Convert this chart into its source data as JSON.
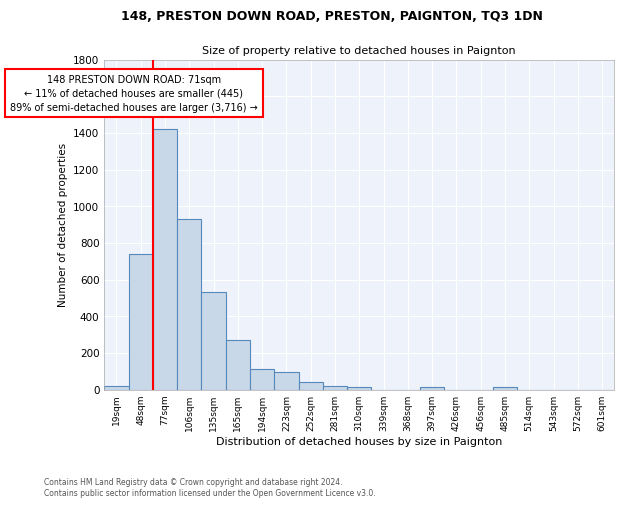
{
  "title": "148, PRESTON DOWN ROAD, PRESTON, PAIGNTON, TQ3 1DN",
  "subtitle": "Size of property relative to detached houses in Paignton",
  "xlabel": "Distribution of detached houses by size in Paignton",
  "ylabel": "Number of detached properties",
  "bins": [
    "19sqm",
    "48sqm",
    "77sqm",
    "106sqm",
    "135sqm",
    "165sqm",
    "194sqm",
    "223sqm",
    "252sqm",
    "281sqm",
    "310sqm",
    "339sqm",
    "368sqm",
    "397sqm",
    "426sqm",
    "456sqm",
    "485sqm",
    "514sqm",
    "543sqm",
    "572sqm",
    "601sqm"
  ],
  "values": [
    20,
    740,
    1420,
    930,
    530,
    270,
    110,
    95,
    40,
    20,
    15,
    0,
    0,
    15,
    0,
    0,
    15,
    0,
    0,
    0,
    0
  ],
  "bar_color": "#c8d8e8",
  "bar_edge_color": "#5588bb",
  "property_line_idx": 2,
  "property_line_color": "red",
  "annotation_text": "148 PRESTON DOWN ROAD: 71sqm\n← 11% of detached houses are smaller (445)\n89% of semi-detached houses are larger (3,716) →",
  "annotation_box_color": "white",
  "annotation_box_edge": "red",
  "footer": "Contains HM Land Registry data © Crown copyright and database right 2024.\nContains public sector information licensed under the Open Government Licence v3.0.",
  "ylim": [
    0,
    1800
  ],
  "yticks": [
    0,
    200,
    400,
    600,
    800,
    1000,
    1200,
    1400,
    1600,
    1800
  ],
  "background_color": "#eef2fb"
}
